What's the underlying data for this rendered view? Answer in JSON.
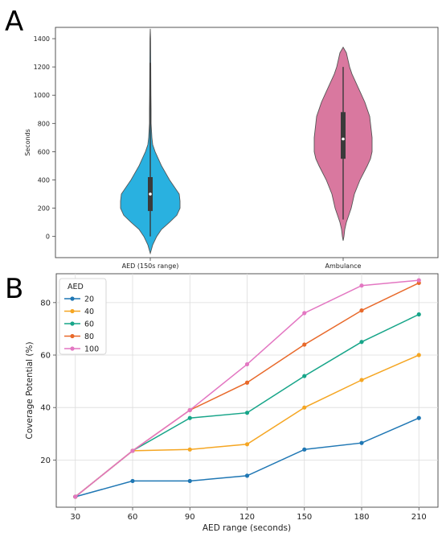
{
  "panels": {
    "a_letter": "A",
    "b_letter": "B"
  },
  "chart_data": [
    {
      "type": "violin",
      "ylabel": "Seconds",
      "ylim": [
        -150,
        1480
      ],
      "yticks": [
        0,
        200,
        400,
        600,
        800,
        1000,
        1200,
        1400
      ],
      "categories": [
        "AED (150s range)",
        "Ambulance"
      ],
      "colors": [
        "#29b1e0",
        "#d9789f"
      ],
      "violins": [
        {
          "name": "AED (150s range)",
          "min": 0,
          "q1": 180,
          "median": 300,
          "q3": 420,
          "max": 1230,
          "profile": [
            [
              -120,
              0
            ],
            [
              -60,
              3
            ],
            [
              0,
              8
            ],
            [
              50,
              14
            ],
            [
              100,
              24
            ],
            [
              150,
              33
            ],
            [
              200,
              37
            ],
            [
              250,
              37
            ],
            [
              300,
              36
            ],
            [
              350,
              30
            ],
            [
              400,
              24
            ],
            [
              450,
              19
            ],
            [
              500,
              14
            ],
            [
              550,
              10
            ],
            [
              600,
              6
            ],
            [
              650,
              3
            ],
            [
              700,
              2
            ],
            [
              750,
              1.5
            ],
            [
              800,
              1
            ],
            [
              900,
              1
            ],
            [
              1000,
              0.8
            ],
            [
              1100,
              0.7
            ],
            [
              1200,
              0.6
            ],
            [
              1300,
              0.5
            ],
            [
              1400,
              0.4
            ],
            [
              1470,
              0
            ]
          ]
        },
        {
          "name": "Ambulance",
          "min": 120,
          "q1": 550,
          "median": 690,
          "q3": 880,
          "max": 1200,
          "profile": [
            [
              -30,
              0
            ],
            [
              0,
              1
            ],
            [
              50,
              2
            ],
            [
              100,
              4
            ],
            [
              150,
              7
            ],
            [
              200,
              10
            ],
            [
              300,
              14
            ],
            [
              400,
              21
            ],
            [
              500,
              30
            ],
            [
              550,
              34
            ],
            [
              600,
              36
            ],
            [
              650,
              36
            ],
            [
              700,
              36
            ],
            [
              750,
              35
            ],
            [
              800,
              34
            ],
            [
              850,
              33
            ],
            [
              900,
              30
            ],
            [
              950,
              27
            ],
            [
              1000,
              23
            ],
            [
              1050,
              19
            ],
            [
              1100,
              15
            ],
            [
              1150,
              11
            ],
            [
              1200,
              8
            ],
            [
              1250,
              6
            ],
            [
              1300,
              4
            ],
            [
              1340,
              0
            ]
          ]
        }
      ]
    },
    {
      "type": "line",
      "xlabel": "AED range (seconds)",
      "ylabel": "Coverage Potential (%)",
      "x": [
        30,
        60,
        90,
        120,
        150,
        180,
        210
      ],
      "xlim": [
        20,
        220
      ],
      "ylim": [
        2,
        91
      ],
      "yticks": [
        20,
        40,
        60,
        80
      ],
      "grid": true,
      "legend_title": "AED",
      "legend_position": "top-left",
      "series": [
        {
          "name": "20",
          "color": "#1f77b4",
          "values": [
            6,
            12,
            12,
            14,
            24,
            26.5,
            36
          ]
        },
        {
          "name": "40",
          "color": "#f5a623",
          "values": [
            6,
            23.5,
            24,
            26,
            40,
            50.5,
            60
          ]
        },
        {
          "name": "60",
          "color": "#17a589",
          "values": [
            6,
            23.5,
            36,
            38,
            52,
            65,
            75.5
          ]
        },
        {
          "name": "80",
          "color": "#e8692a",
          "values": [
            6,
            23.5,
            39,
            49.5,
            64,
            77,
            87.5
          ]
        },
        {
          "name": "100",
          "color": "#e377c2",
          "values": [
            6,
            23.5,
            39,
            56.5,
            76,
            86.5,
            88.5
          ]
        }
      ]
    }
  ]
}
